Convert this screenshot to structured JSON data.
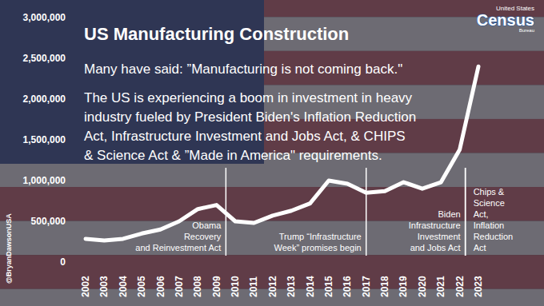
{
  "chart_data": {
    "type": "line",
    "title": "US Manufacturing Construction",
    "subtitle": "Many have said: ”Manufacturing is not coming back.\"",
    "description": [
      "The US is experiencing a boom in investment in heavy",
      "industry fueled by President Biden's Inflation Reduction",
      "Act, Infrastructure Investment and Jobs Act, & CHIPS",
      "& Science Act & ”Made in America\" requirements."
    ],
    "source": [
      "United States",
      "Census",
      "Bureau"
    ],
    "credit": "@BryanDawsonUSA",
    "x": [
      2002,
      2003,
      2004,
      2005,
      2006,
      2007,
      2008,
      2009,
      2010,
      2011,
      2012,
      2013,
      2014,
      2015,
      2016,
      2017,
      2018,
      2019,
      2020,
      2021,
      2022,
      2023
    ],
    "values": [
      285000,
      265000,
      285000,
      350000,
      400000,
      500000,
      650000,
      700000,
      500000,
      480000,
      570000,
      630000,
      720000,
      1000000,
      960000,
      850000,
      870000,
      980000,
      900000,
      980000,
      1380000,
      2400000
    ],
    "color": "#ffffff",
    "xlim": [
      2002,
      2023
    ],
    "xticks": [
      2002,
      2003,
      2004,
      2005,
      2006,
      2007,
      2008,
      2009,
      2010,
      2011,
      2012,
      2013,
      2014,
      2015,
      2016,
      2017,
      2018,
      2019,
      2020,
      2021,
      2022,
      2023
    ],
    "ylim": [
      0,
      3000000
    ],
    "yticks": [
      0,
      {
        "value": 500000,
        "label": "500,000"
      },
      {
        "value": 1000000,
        "label": "1,000,000"
      },
      {
        "value": 1500000,
        "label": "1,500,000"
      },
      {
        "value": 2000000,
        "label": "2,000,000"
      },
      {
        "value": 2500000,
        "label": "2,500,000"
      },
      {
        "value": 3000000,
        "label": "3,000,000"
      }
    ],
    "grid": false,
    "annotations": [
      {
        "x": 2009.5,
        "lines": [
          "Obama",
          "Recovery",
          "and Reinvestment Act"
        ]
      },
      {
        "x": 2017,
        "lines": [
          "Trump “Infrastructure",
          "Week” promises begin"
        ]
      },
      {
        "x": 2022.3,
        "lines": [
          "Biden",
          "Infrastructure",
          "Investment",
          "and Jobs Act"
        ]
      },
      {
        "x": 2022.3,
        "lines": [
          "Chips &",
          "Science",
          "Act,",
          "Inflation",
          "Reduction",
          "Act"
        ]
      }
    ]
  }
}
